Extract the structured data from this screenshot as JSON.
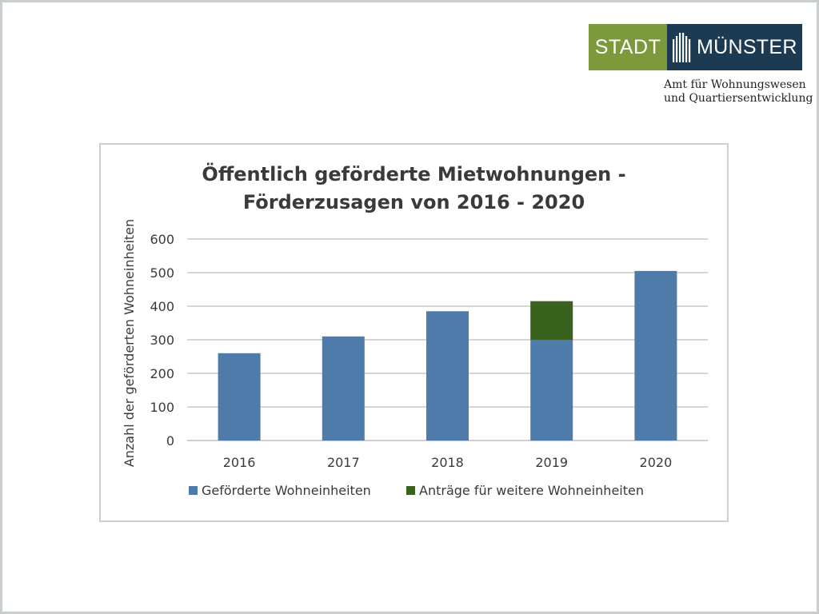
{
  "logo": {
    "left_text": "STADT",
    "right_text": "MÜNSTER",
    "mark_icon": "city-skyline-icon",
    "department_lines": [
      "Amt für Wohnungswesen",
      "und Quartiersentwicklung"
    ]
  },
  "colors": {
    "logo_green": "#7c9a3b",
    "logo_navy": "#1c3a52",
    "series_blue": "#4f7bab",
    "series_green": "#38621e",
    "gridline": "#c8c8c8"
  },
  "chart_data": {
    "type": "bar",
    "stacked": true,
    "title_lines": [
      "Öffentlich geförderte Mietwohnungen -",
      "Förderzusagen von 2016 - 2020"
    ],
    "ylabel": "Anzahl der geförderten Wohneinheiten",
    "xlabel": "",
    "categories": [
      "2016",
      "2017",
      "2018",
      "2019",
      "2020"
    ],
    "series": [
      {
        "name": "Geförderte Wohneinheiten",
        "values": [
          260,
          310,
          385,
          300,
          505
        ],
        "color": "#4f7bab"
      },
      {
        "name": "Anträge für weitere Wohneinheiten",
        "values": [
          0,
          0,
          0,
          115,
          0
        ],
        "color": "#38621e"
      }
    ],
    "ylim": [
      0,
      600
    ],
    "yticks": [
      0,
      100,
      200,
      300,
      400,
      500,
      600
    ],
    "grid": true,
    "legend": "bottom"
  }
}
